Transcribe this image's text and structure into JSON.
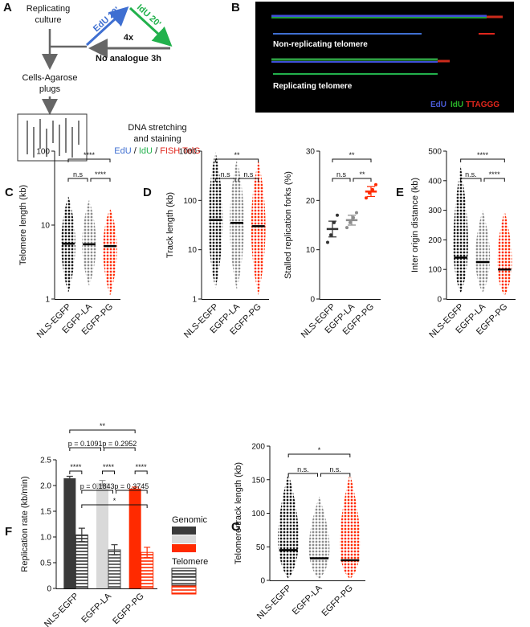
{
  "diagram": {
    "panel": "A",
    "culture": [
      "Replicating",
      "culture"
    ],
    "plugs": [
      "Cells-Agarose",
      "plugs"
    ],
    "pulse1": "EdU 20'",
    "pulse2": "IdU 20'",
    "repeat": "4x",
    "chase": "No analogue 3h",
    "stretching": [
      "DNA stretching",
      "and staining"
    ],
    "stains": [
      "EdU",
      "IdU",
      "FISH TelG"
    ],
    "separator": "/"
  },
  "image": {
    "panel": "B",
    "labels": [
      "Non-replicating telomere",
      "Replicating telomere"
    ],
    "legend": [
      "EdU",
      "IdU",
      "TTAGGG"
    ]
  },
  "chart_data": [
    {
      "type": "strip",
      "panel": "C",
      "ylabel": "Telomere length (kb)",
      "log": true,
      "categories": [
        "NLS-EGFP",
        "EGFP-LA",
        "EGFP-PG"
      ],
      "colors": [
        "#111111",
        "#8c8c8c",
        "#ff2a00"
      ],
      "means": [
        5.6,
        5.5,
        5.2
      ],
      "ranges": [
        [
          1.2,
          25
        ],
        [
          1.5,
          22
        ],
        [
          1.1,
          17
        ]
      ],
      "significance": [
        "****",
        "n.s",
        "****"
      ],
      "ylim": [
        1,
        100
      ],
      "yticks": [
        1,
        10,
        100
      ]
    },
    {
      "type": "strip",
      "panel": "D",
      "ylabel": "Track length (kb)",
      "log": true,
      "categories": [
        "NLS-EGFP",
        "EGFP-LA",
        "EGFP-PG"
      ],
      "colors": [
        "#111111",
        "#8c8c8c",
        "#ff2a00"
      ],
      "means": [
        40,
        35,
        30
      ],
      "ranges": [
        [
          1.6,
          1000
        ],
        [
          1.5,
          700
        ],
        [
          1.2,
          650
        ]
      ],
      "significance": [
        "**",
        "n.s",
        "n.s"
      ],
      "ylim": [
        1,
        1000
      ],
      "yticks": [
        1,
        10,
        100,
        1000
      ]
    },
    {
      "type": "strip",
      "ylabel": "Stalled replication forks (%)",
      "log": false,
      "categories": [
        "NLS-EGFP",
        "EGFP-LA",
        "EGFP-PG"
      ],
      "colors": [
        "#333333",
        "#8c8c8c",
        "#ff2a00"
      ],
      "means": [
        14.2,
        16,
        21.8
      ],
      "errors": [
        1.6,
        1,
        1
      ],
      "points": [
        [
          11.5,
          13,
          15.5,
          17
        ],
        [
          14.5,
          15.5,
          16.5,
          17.5
        ],
        [
          20.5,
          21.5,
          22.2,
          23.2
        ]
      ],
      "significance": [
        "**",
        "n.s",
        "**"
      ],
      "ylim": [
        0,
        30
      ],
      "yticks": [
        0,
        10,
        20,
        30
      ]
    },
    {
      "type": "strip",
      "panel": "E",
      "ylabel": "Inter origin distance (kb)",
      "log": false,
      "categories": [
        "NLS-EGFP",
        "EGFP-LA",
        "EGFP-PG"
      ],
      "colors": [
        "#111111",
        "#8c8c8c",
        "#ff2a00"
      ],
      "means": [
        140,
        125,
        100
      ],
      "ranges": [
        [
          20,
          450
        ],
        [
          20,
          300
        ],
        [
          10,
          300
        ]
      ],
      "significance": [
        "****",
        "n.s.",
        "****"
      ],
      "ylim": [
        0,
        500
      ],
      "yticks": [
        0,
        100,
        200,
        300,
        400,
        500
      ]
    },
    {
      "type": "bar",
      "panel": "F",
      "ylabel": "Replication rate (kb/min)",
      "categories": [
        "NLS-EGFP",
        "EGFP-LA",
        "EGFP-PG"
      ],
      "series": [
        {
          "name": "Genomic",
          "colors": [
            "#3a3a3a",
            "#d9d9d9",
            "#ff2a00"
          ],
          "values": [
            2.14,
            2.05,
            1.94
          ],
          "errors": [
            0.04,
            0.05,
            0.03
          ]
        },
        {
          "name": "Telomere",
          "hatched": true,
          "colors": [
            "#333333",
            "#444444",
            "#ff2a00"
          ],
          "values": [
            1.04,
            0.75,
            0.7
          ],
          "errors": [
            0.13,
            0.1,
            0.1
          ]
        }
      ],
      "annotations": [
        "**",
        "p = 0.1091",
        "p = 0.2952",
        "****",
        "****",
        "****",
        "p = 0.1843",
        "p = 0.3745",
        "*"
      ],
      "ylim": [
        0,
        2.5
      ],
      "yticks": [
        0,
        0.5,
        {
          "value": 1,
          "label": "1.0"
        },
        1.5,
        {
          "value": 2,
          "label": "2.0"
        },
        2.5
      ]
    },
    {
      "type": "strip",
      "panel": "G",
      "ylabel": "Telomere track length (kb)",
      "log": false,
      "categories": [
        "NLS-EGFP",
        "EGFP-LA",
        "EGFP-PG"
      ],
      "colors": [
        "#111111",
        "#8c8c8c",
        "#ff2a00"
      ],
      "means": [
        45,
        33,
        30
      ],
      "ranges": [
        [
          2,
          160
        ],
        [
          2,
          125
        ],
        [
          2,
          160
        ]
      ],
      "significance": [
        "*",
        "n.s.",
        "n.s."
      ],
      "ylim": [
        0,
        200
      ],
      "yticks": [
        0,
        50,
        100,
        150,
        200
      ]
    }
  ]
}
